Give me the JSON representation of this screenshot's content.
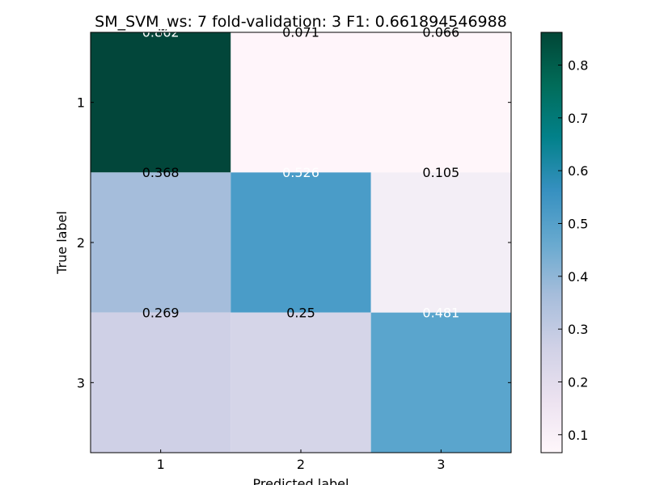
{
  "chart_data": {
    "type": "heatmap",
    "title": "SM_SVM_ws: 7 fold-validation: 3 F1: 0.661894546988",
    "xlabel": "Predicted label",
    "ylabel": "True label",
    "x_categories": [
      "1",
      "2",
      "3"
    ],
    "y_categories": [
      "1",
      "2",
      "3"
    ],
    "values": [
      [
        0.862,
        0.071,
        0.066
      ],
      [
        0.368,
        0.526,
        0.105
      ],
      [
        0.269,
        0.25,
        0.481
      ]
    ],
    "value_labels": [
      [
        "0.862",
        "0.071",
        "0.066"
      ],
      [
        "0.368",
        "0.526",
        "0.105"
      ],
      [
        "0.269",
        "0.25",
        "0.481"
      ]
    ],
    "colormap": "PuBuGn",
    "color_range": [
      0.066,
      0.862
    ],
    "colorbar_ticks": [
      "0.1",
      "0.2",
      "0.3",
      "0.4",
      "0.5",
      "0.6",
      "0.7",
      "0.8"
    ],
    "colors": {
      "cells": [
        [
          "#02463a",
          "#fff5fa",
          "#fff6fa"
        ],
        [
          "#a5bddb",
          "#4a9cc8",
          "#f3eef6"
        ],
        [
          "#cfd0e6",
          "#d5d5e8",
          "#5aa5cd"
        ]
      ],
      "text_light": "#ffffff",
      "text_dark": "#000000"
    }
  }
}
